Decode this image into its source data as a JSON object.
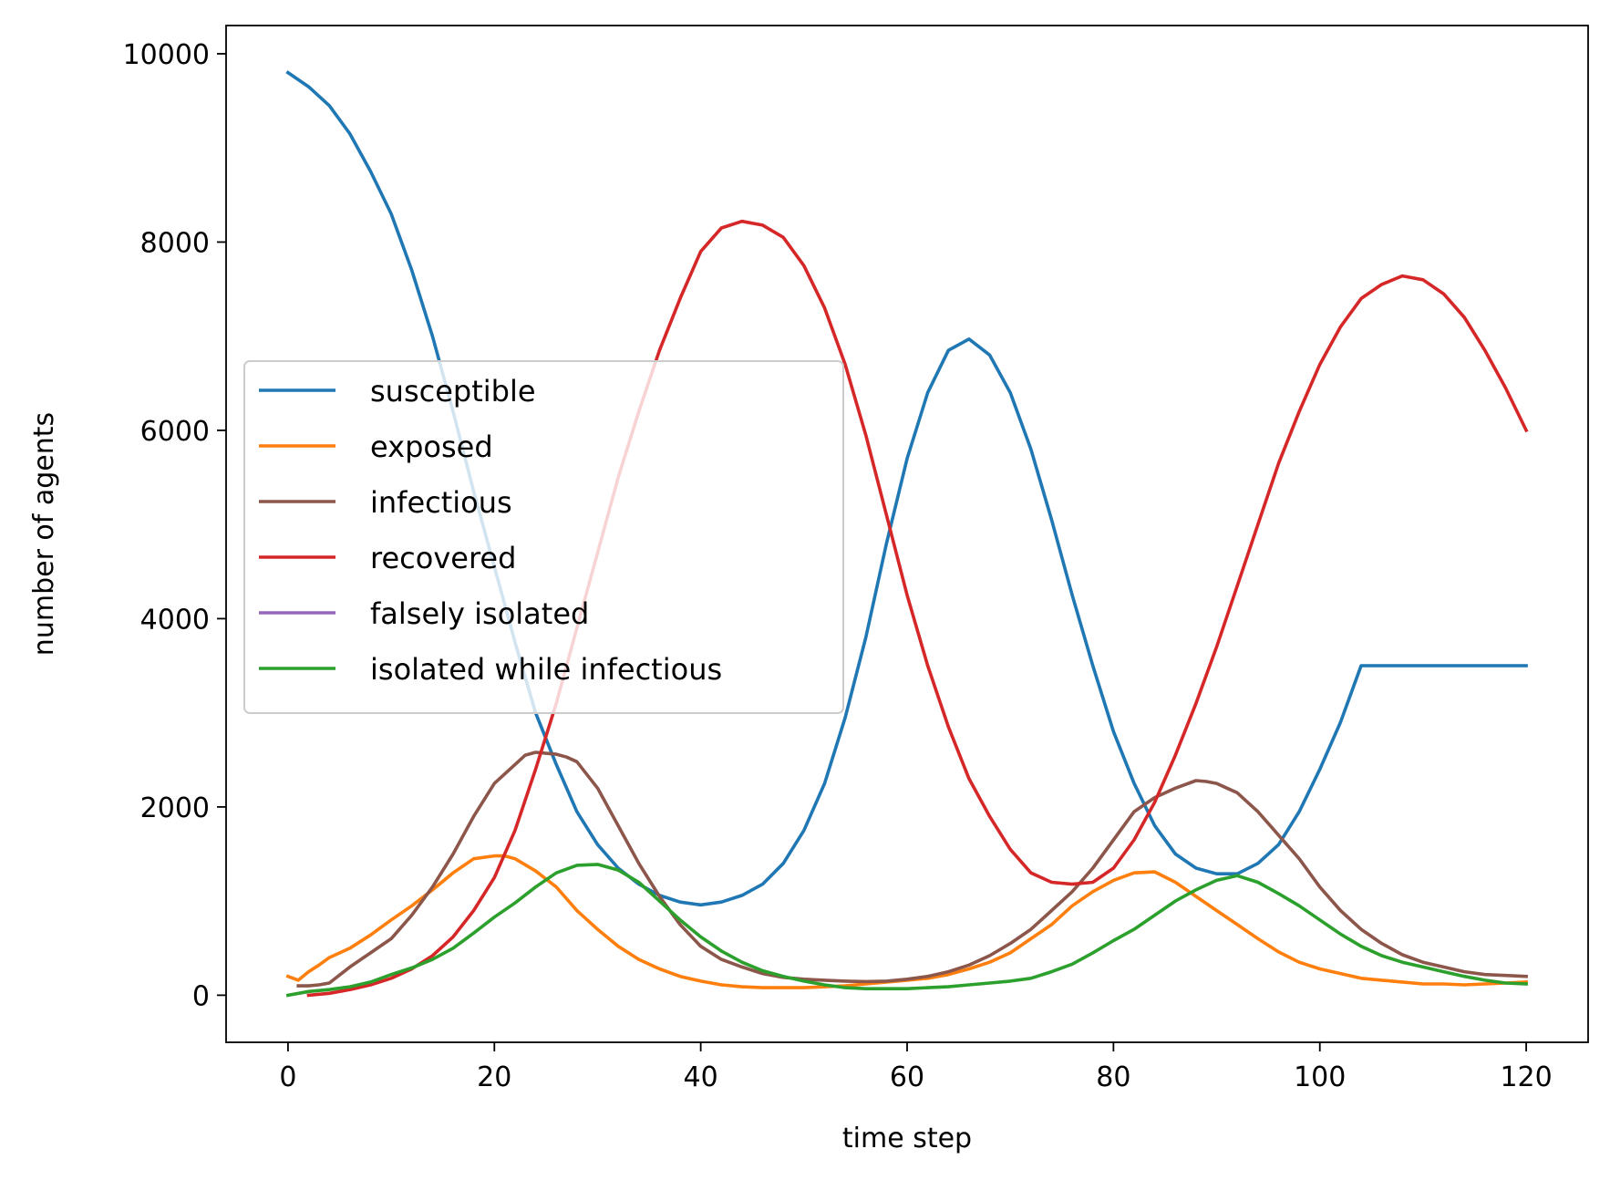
{
  "chart_data": {
    "type": "line",
    "title": "",
    "xlabel": "time step",
    "ylabel": "number of agents",
    "xlim": [
      -6,
      126
    ],
    "ylim": [
      -500,
      10300
    ],
    "xticks": [
      0,
      20,
      40,
      60,
      80,
      100,
      120
    ],
    "yticks": [
      0,
      2000,
      4000,
      6000,
      8000,
      10000
    ],
    "xtick_labels": [
      "0",
      "20",
      "40",
      "60",
      "80",
      "100",
      "120"
    ],
    "ytick_labels": [
      "0",
      "2000",
      "4000",
      "6000",
      "8000",
      "10000"
    ],
    "legend_position": "center-left",
    "series": [
      {
        "name": "susceptible",
        "color": "#1f77b4",
        "x": [
          0,
          2,
          4,
          6,
          8,
          10,
          12,
          14,
          16,
          18,
          20,
          22,
          24,
          26,
          28,
          30,
          32,
          34,
          36,
          38,
          40,
          42,
          44,
          46,
          48,
          50,
          52,
          54,
          56,
          58,
          60,
          62,
          64,
          66,
          68,
          70,
          72,
          74,
          76,
          78,
          80,
          82,
          84,
          86,
          88,
          90,
          92,
          94,
          96,
          98,
          100,
          102,
          104,
          106,
          108,
          110,
          112,
          114,
          116,
          118,
          120
        ],
        "y": [
          9800,
          9650,
          9450,
          9150,
          8750,
          8300,
          7700,
          7000,
          6200,
          5350,
          4550,
          3750,
          3000,
          2450,
          1950,
          1600,
          1350,
          1180,
          1060,
          990,
          960,
          990,
          1060,
          1180,
          1400,
          1750,
          2250,
          2950,
          3800,
          4800,
          5700,
          6400,
          6850,
          6970,
          6800,
          6400,
          5800,
          5050,
          4250,
          3500,
          2800,
          2250,
          1800,
          1500,
          1350,
          1290,
          1290,
          1400,
          1600,
          1950,
          2400,
          2900,
          3500,
          3500,
          3500,
          3500,
          3500,
          3500,
          3500,
          3500,
          3500
        ]
      },
      {
        "name": "exposed",
        "color": "#ff7f0e",
        "x": [
          0,
          1,
          2,
          3,
          4,
          6,
          8,
          10,
          12,
          14,
          16,
          18,
          20,
          21,
          22,
          24,
          26,
          28,
          30,
          32,
          34,
          36,
          38,
          40,
          42,
          44,
          46,
          48,
          50,
          52,
          54,
          56,
          58,
          60,
          62,
          64,
          66,
          68,
          70,
          72,
          74,
          76,
          78,
          80,
          82,
          84,
          86,
          88,
          90,
          92,
          94,
          96,
          98,
          100,
          102,
          104,
          106,
          108,
          110,
          112,
          114,
          116,
          118,
          120
        ],
        "y": [
          200,
          160,
          250,
          320,
          400,
          500,
          640,
          800,
          950,
          1120,
          1300,
          1450,
          1480,
          1480,
          1450,
          1320,
          1150,
          900,
          700,
          520,
          380,
          280,
          200,
          150,
          110,
          90,
          80,
          80,
          80,
          90,
          100,
          120,
          140,
          160,
          180,
          220,
          280,
          350,
          450,
          600,
          750,
          950,
          1100,
          1220,
          1300,
          1310,
          1200,
          1050,
          900,
          750,
          600,
          460,
          350,
          280,
          230,
          180,
          160,
          140,
          120,
          120,
          110,
          120,
          130,
          140
        ]
      },
      {
        "name": "infectious",
        "color": "#8c564b",
        "x": [
          1,
          2,
          3,
          4,
          6,
          8,
          10,
          12,
          14,
          16,
          18,
          20,
          22,
          23,
          24,
          25,
          26,
          27,
          28,
          30,
          32,
          34,
          36,
          38,
          40,
          42,
          44,
          46,
          48,
          50,
          52,
          54,
          56,
          58,
          60,
          62,
          64,
          66,
          68,
          70,
          72,
          74,
          76,
          78,
          80,
          82,
          84,
          86,
          88,
          89,
          90,
          91,
          92,
          94,
          96,
          98,
          100,
          102,
          104,
          106,
          108,
          110,
          112,
          114,
          116,
          118,
          120
        ],
        "y": [
          100,
          100,
          110,
          130,
          300,
          450,
          600,
          850,
          1150,
          1500,
          1900,
          2250,
          2450,
          2550,
          2580,
          2570,
          2560,
          2530,
          2480,
          2200,
          1800,
          1400,
          1050,
          750,
          520,
          380,
          300,
          230,
          190,
          170,
          160,
          150,
          145,
          150,
          170,
          200,
          250,
          320,
          420,
          550,
          700,
          900,
          1100,
          1350,
          1650,
          1950,
          2100,
          2200,
          2280,
          2270,
          2250,
          2200,
          2150,
          1950,
          1700,
          1450,
          1150,
          900,
          700,
          550,
          430,
          350,
          300,
          250,
          220,
          210,
          200
        ]
      },
      {
        "name": "recovered",
        "color": "#d62728",
        "x": [
          2,
          4,
          6,
          8,
          10,
          12,
          14,
          16,
          18,
          20,
          22,
          24,
          26,
          28,
          30,
          32,
          34,
          36,
          38,
          40,
          42,
          44,
          46,
          48,
          50,
          52,
          54,
          56,
          58,
          60,
          62,
          64,
          66,
          68,
          70,
          72,
          74,
          76,
          78,
          80,
          82,
          84,
          86,
          88,
          90,
          92,
          94,
          96,
          98,
          100,
          102,
          104,
          106,
          108,
          110,
          112,
          114,
          116,
          118,
          120
        ],
        "y": [
          0,
          20,
          60,
          110,
          180,
          280,
          420,
          620,
          900,
          1250,
          1750,
          2400,
          3100,
          3900,
          4700,
          5500,
          6200,
          6850,
          7400,
          7900,
          8150,
          8220,
          8180,
          8050,
          7750,
          7300,
          6700,
          5950,
          5100,
          4250,
          3500,
          2850,
          2300,
          1900,
          1550,
          1300,
          1200,
          1180,
          1200,
          1350,
          1650,
          2050,
          2550,
          3100,
          3700,
          4350,
          5000,
          5650,
          6200,
          6700,
          7100,
          7400,
          7550,
          7640,
          7600,
          7450,
          7200,
          6850,
          6450,
          6000
        ]
      },
      {
        "name": "falsely isolated",
        "color": "#9467bd",
        "x": [],
        "y": []
      },
      {
        "name": "isolated while infectious",
        "color": "#2ca02c",
        "x": [
          0,
          2,
          4,
          6,
          8,
          10,
          12,
          14,
          16,
          18,
          20,
          22,
          24,
          26,
          28,
          30,
          32,
          34,
          36,
          38,
          40,
          42,
          44,
          46,
          48,
          50,
          52,
          54,
          56,
          58,
          60,
          62,
          64,
          66,
          68,
          70,
          72,
          74,
          76,
          78,
          80,
          82,
          84,
          86,
          88,
          90,
          92,
          94,
          96,
          98,
          100,
          102,
          104,
          106,
          108,
          110,
          112,
          114,
          116,
          118,
          120
        ],
        "y": [
          0,
          40,
          60,
          90,
          140,
          220,
          290,
          380,
          500,
          660,
          830,
          980,
          1150,
          1300,
          1380,
          1390,
          1330,
          1200,
          1000,
          800,
          620,
          470,
          350,
          260,
          200,
          150,
          110,
          80,
          70,
          70,
          70,
          80,
          90,
          110,
          130,
          150,
          180,
          250,
          330,
          450,
          580,
          700,
          850,
          1000,
          1120,
          1220,
          1270,
          1200,
          1080,
          950,
          800,
          650,
          520,
          420,
          350,
          300,
          250,
          200,
          160,
          130,
          120
        ]
      }
    ]
  }
}
